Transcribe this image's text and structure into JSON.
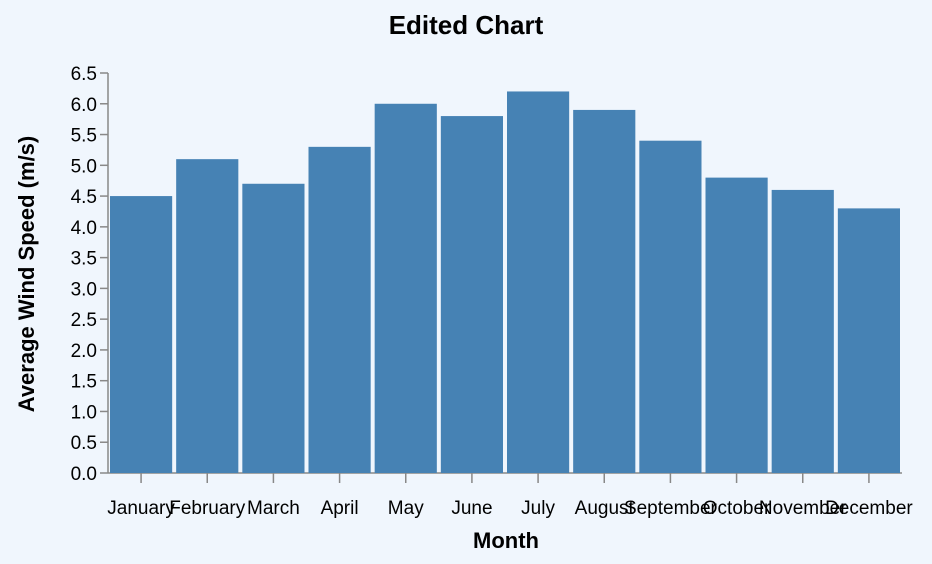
{
  "chart_data": {
    "type": "bar",
    "title": "Edited Chart",
    "xlabel": "Month",
    "ylabel": "Average Wind Speed (m/s)",
    "categories": [
      "January",
      "February",
      "March",
      "April",
      "May",
      "June",
      "July",
      "August",
      "September",
      "October",
      "November",
      "December"
    ],
    "values": [
      4.5,
      5.1,
      4.7,
      5.3,
      6.0,
      5.8,
      6.2,
      5.9,
      5.4,
      4.8,
      4.6,
      4.3
    ],
    "ylim": [
      0,
      6.5
    ],
    "yticks": [
      "0.0",
      "0.5",
      "1.0",
      "1.5",
      "2.0",
      "2.5",
      "3.0",
      "3.5",
      "4.0",
      "4.5",
      "5.0",
      "5.5",
      "6.0",
      "6.5"
    ],
    "grid": false,
    "colors": {
      "bar": "#4682b4",
      "background": "#f0f6fd"
    }
  }
}
